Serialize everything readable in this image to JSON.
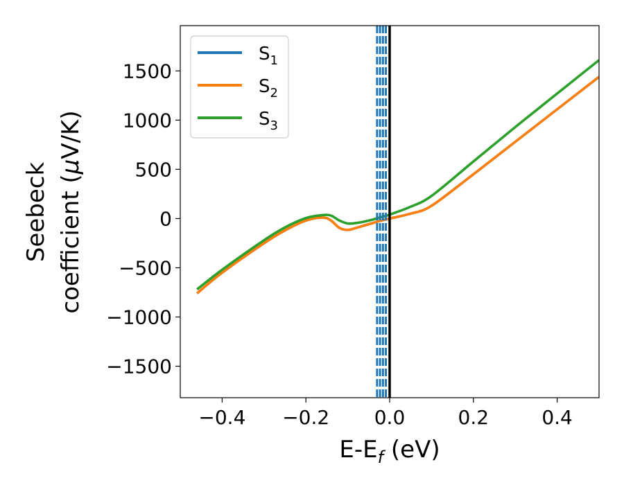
{
  "chart_data": {
    "type": "line",
    "xlabel": "E-E",
    "xlabel_sub": "f",
    "xlabel_unit": " (eV)",
    "ylabel_line1": "Seebeck",
    "ylabel_line2_prefix": "coefficient  (",
    "ylabel_mu": "μ",
    "ylabel_line2_suffix": "V/K)",
    "xlim": [
      -0.5,
      0.5
    ],
    "ylim": [
      -1820,
      1960
    ],
    "x_ticks": [
      -0.4,
      -0.2,
      0.0,
      0.2,
      0.4
    ],
    "x_tick_labels": [
      "−0.4",
      "−0.2",
      "0.0",
      "0.2",
      "0.4"
    ],
    "y_ticks": [
      -1500,
      -1000,
      -500,
      0,
      500,
      1000,
      1500
    ],
    "y_tick_labels": [
      "−1500",
      "−1000",
      "−500",
      "0",
      "500",
      "1000",
      "1500"
    ],
    "grid": false,
    "legend_position": "top-left",
    "fermi_line_x": 0.0,
    "dashed_lines_x": [
      -0.03,
      -0.023,
      -0.016,
      -0.009
    ],
    "series": [
      {
        "name": "S",
        "sub": "1",
        "color": "#1f77b4",
        "x": [
          -0.46,
          -0.4,
          -0.3,
          -0.25,
          -0.2,
          -0.16,
          -0.14,
          -0.12,
          -0.1,
          -0.08,
          -0.06,
          -0.04,
          -0.02,
          0.0,
          0.05,
          0.1,
          0.2,
          0.3,
          0.4,
          0.5
        ],
        "y": [
          -760,
          -550,
          -250,
          -120,
          -20,
          10,
          -20,
          -95,
          -115,
          -95,
          -70,
          -45,
          -20,
          0,
          50,
          130,
          450,
          780,
          1110,
          1440
        ]
      },
      {
        "name": "S",
        "sub": "2",
        "color": "#ff7f0e",
        "x": [
          -0.46,
          -0.4,
          -0.3,
          -0.25,
          -0.2,
          -0.16,
          -0.14,
          -0.12,
          -0.1,
          -0.08,
          -0.06,
          -0.04,
          -0.02,
          0.0,
          0.05,
          0.1,
          0.2,
          0.3,
          0.4,
          0.5
        ],
        "y": [
          -760,
          -550,
          -250,
          -120,
          -20,
          10,
          -20,
          -95,
          -115,
          -95,
          -70,
          -45,
          -20,
          0,
          50,
          130,
          450,
          780,
          1110,
          1440
        ]
      },
      {
        "name": "S",
        "sub": "3",
        "color": "#2ca02c",
        "x": [
          -0.46,
          -0.4,
          -0.3,
          -0.25,
          -0.2,
          -0.16,
          -0.14,
          -0.12,
          -0.1,
          -0.08,
          -0.06,
          -0.04,
          -0.02,
          0.0,
          0.05,
          0.1,
          0.2,
          0.3,
          0.4,
          0.5
        ],
        "y": [
          -720,
          -520,
          -220,
          -90,
          5,
          35,
          30,
          -20,
          -50,
          -45,
          -30,
          -10,
          15,
          40,
          120,
          230,
          580,
          930,
          1270,
          1610
        ]
      }
    ]
  }
}
